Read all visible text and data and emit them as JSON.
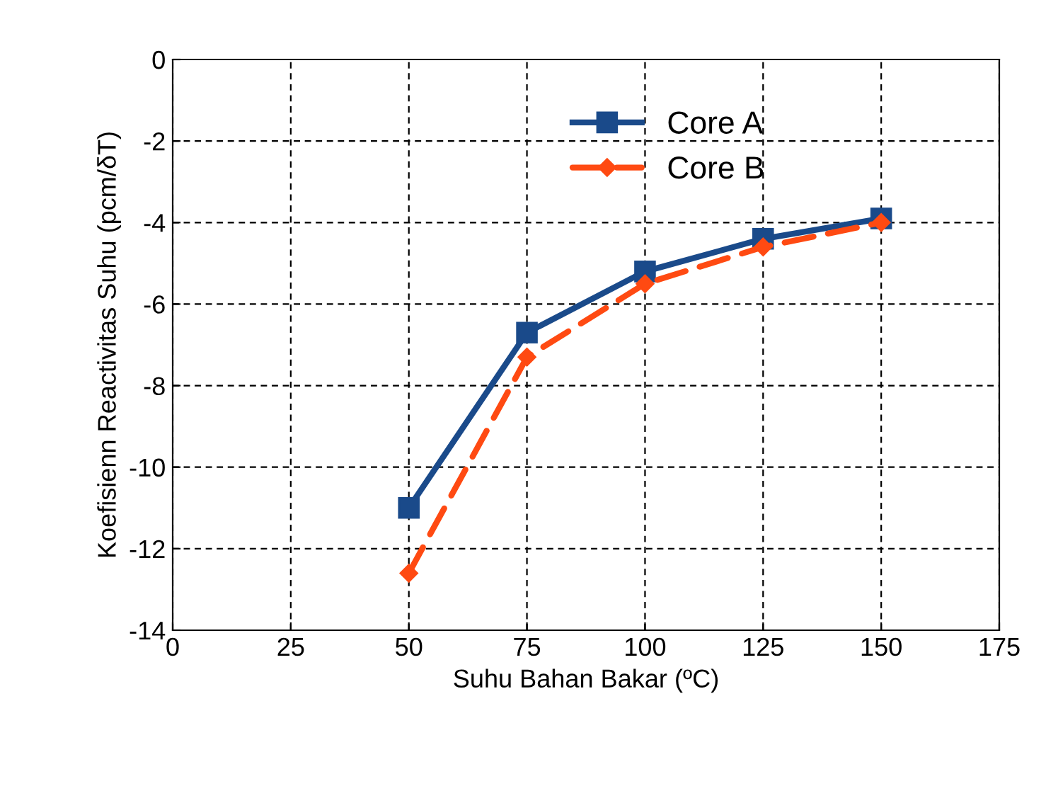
{
  "chart_data": {
    "type": "line",
    "xlabel": "Suhu Bahan Bakar (ºC)",
    "ylabel": "Koefisienn Reactivitas Suhu (pcm/δT)",
    "x": [
      50,
      75,
      100,
      125,
      150
    ],
    "series": [
      {
        "name": "Core A",
        "color": "#1a4a8a",
        "values": [
          -11.0,
          -6.7,
          -5.2,
          -4.4,
          -3.9
        ],
        "marker": "square",
        "line_style": "solid"
      },
      {
        "name": "Core B",
        "color": "#ff4a12",
        "values": [
          -12.6,
          -7.3,
          -5.5,
          -4.6,
          -4.0
        ],
        "marker": "diamond",
        "line_style": "dashed"
      }
    ],
    "xlim": [
      0,
      175
    ],
    "xticks": [
      0,
      25,
      50,
      75,
      100,
      125,
      150,
      175
    ],
    "ylim": [
      -14,
      0
    ],
    "yticks": [
      -14,
      -12,
      -10,
      -8,
      -6,
      -4,
      -2,
      0
    ],
    "grid": true,
    "legend": "top"
  }
}
